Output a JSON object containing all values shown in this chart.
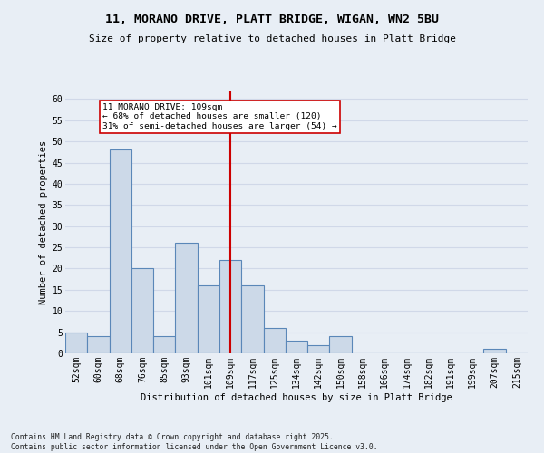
{
  "title_line1": "11, MORANO DRIVE, PLATT BRIDGE, WIGAN, WN2 5BU",
  "title_line2": "Size of property relative to detached houses in Platt Bridge",
  "xlabel": "Distribution of detached houses by size in Platt Bridge",
  "ylabel": "Number of detached properties",
  "categories": [
    "52sqm",
    "60sqm",
    "68sqm",
    "76sqm",
    "85sqm",
    "93sqm",
    "101sqm",
    "109sqm",
    "117sqm",
    "125sqm",
    "134sqm",
    "142sqm",
    "150sqm",
    "158sqm",
    "166sqm",
    "174sqm",
    "182sqm",
    "191sqm",
    "199sqm",
    "207sqm",
    "215sqm"
  ],
  "values": [
    5,
    4,
    48,
    20,
    4,
    26,
    16,
    22,
    16,
    6,
    3,
    2,
    4,
    0,
    0,
    0,
    0,
    0,
    0,
    1,
    0
  ],
  "bar_color": "#ccd9e8",
  "bar_edge_color": "#5a87b8",
  "grid_color": "#d0d8e8",
  "bg_color": "#e8eef5",
  "fig_bg_color": "#e8eef5",
  "vline_x": 7,
  "vline_color": "#cc0000",
  "annotation_text": "11 MORANO DRIVE: 109sqm\n← 68% of detached houses are smaller (120)\n31% of semi-detached houses are larger (54) →",
  "annotation_box_color": "#cc0000",
  "ylim": [
    0,
    62
  ],
  "yticks": [
    0,
    5,
    10,
    15,
    20,
    25,
    30,
    35,
    40,
    45,
    50,
    55,
    60
  ],
  "footnote": "Contains HM Land Registry data © Crown copyright and database right 2025.\nContains public sector information licensed under the Open Government Licence v3.0.",
  "title_fontsize": 9.5,
  "subtitle_fontsize": 8,
  "axis_label_fontsize": 7.5,
  "tick_fontsize": 7,
  "footnote_fontsize": 5.8
}
